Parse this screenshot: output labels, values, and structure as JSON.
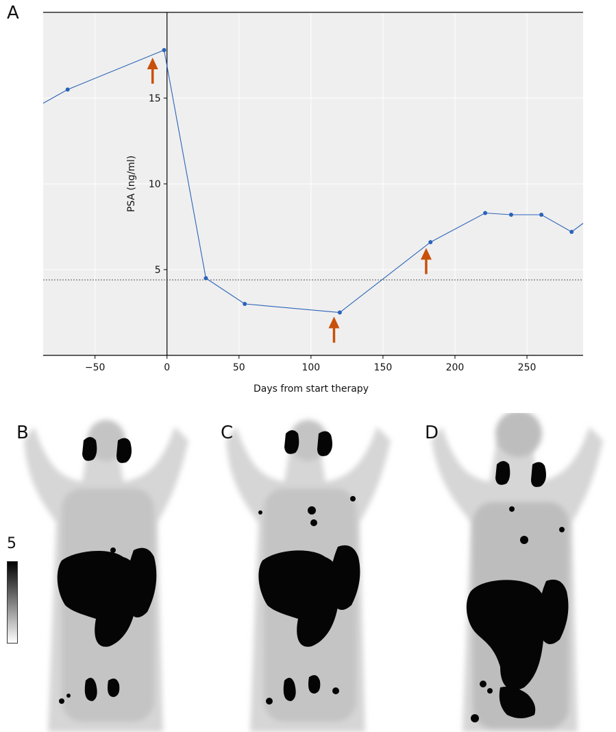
{
  "panels": {
    "a": "A",
    "b": "B",
    "c": "C",
    "d": "D"
  },
  "colorbar": {
    "max_label": "5"
  },
  "chart_data": {
    "type": "line",
    "title": "",
    "xlabel": "Days from start therapy",
    "ylabel": "PSA (ng/ml)",
    "xlim": [
      -86,
      289
    ],
    "ylim": [
      0,
      20
    ],
    "xticks": [
      -50,
      0,
      50,
      100,
      150,
      200,
      250
    ],
    "xtick_labels": [
      "−50",
      "0",
      "50",
      "100",
      "150",
      "200",
      "250"
    ],
    "yticks": [
      5,
      10,
      15
    ],
    "ytick_labels": [
      "5",
      "10",
      "15"
    ],
    "grid": true,
    "series": [
      {
        "color": "#2a62b8",
        "points": [
          {
            "x": -86,
            "y": 14.7
          },
          {
            "x": -69,
            "y": 15.5
          },
          {
            "x": -2,
            "y": 17.8
          },
          {
            "x": 27,
            "y": 4.5
          },
          {
            "x": 54,
            "y": 3.0
          },
          {
            "x": 120,
            "y": 2.5
          },
          {
            "x": 183,
            "y": 6.6
          },
          {
            "x": 221,
            "y": 8.3
          },
          {
            "x": 239,
            "y": 8.2
          },
          {
            "x": 260,
            "y": 8.2
          },
          {
            "x": 281,
            "y": 7.2
          },
          {
            "x": 289,
            "y": 7.7
          }
        ],
        "marker_points": [
          {
            "x": -69,
            "y": 15.5
          },
          {
            "x": -2,
            "y": 17.8
          },
          {
            "x": 27,
            "y": 4.5
          },
          {
            "x": 54,
            "y": 3.0
          },
          {
            "x": 120,
            "y": 2.5
          },
          {
            "x": 183,
            "y": 6.6
          },
          {
            "x": 221,
            "y": 8.3
          },
          {
            "x": 239,
            "y": 8.2
          },
          {
            "x": 260,
            "y": 8.2
          },
          {
            "x": 281,
            "y": 7.2
          }
        ]
      }
    ],
    "reference_line": {
      "y": 4.4,
      "style": "dotted"
    },
    "vertical_line": {
      "x": 0
    },
    "annotations": [
      {
        "type": "arrow",
        "x": -10,
        "y": 17.2,
        "color": "#c8500a"
      },
      {
        "type": "arrow",
        "x": 116,
        "y": 2.1,
        "color": "#c8500a"
      },
      {
        "type": "arrow",
        "x": 180,
        "y": 6.1,
        "color": "#c8500a"
      }
    ]
  }
}
